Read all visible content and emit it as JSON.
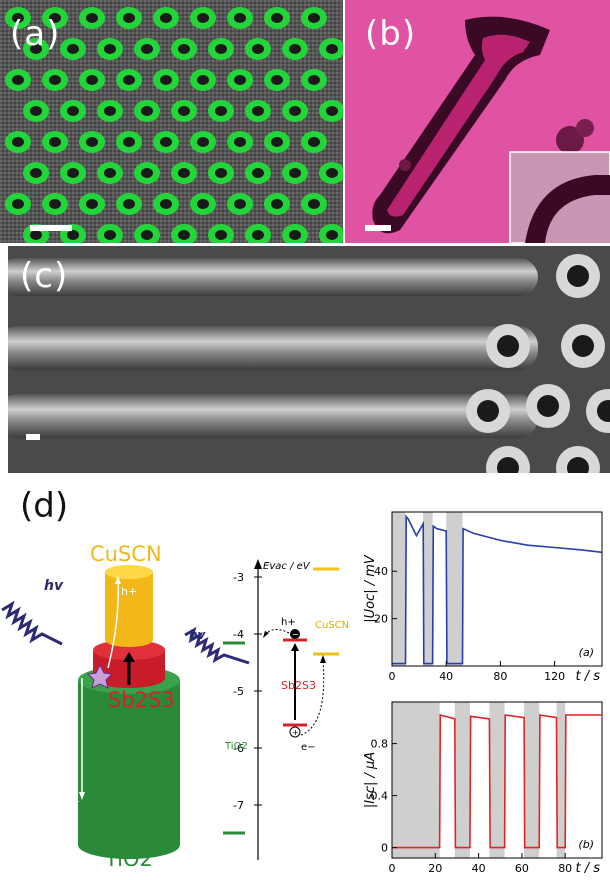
{
  "panels": {
    "a": {
      "label": "(a)"
    },
    "b": {
      "label": "(b)"
    },
    "c": {
      "label": "(c)"
    },
    "d": {
      "label": "(d)"
    }
  },
  "diagram": {
    "materials": {
      "top": "CuSCN",
      "middle": "Sb2S3",
      "bottom": "TiO2"
    },
    "light": "hv",
    "hole": "h+",
    "electron": "e−",
    "colors": {
      "cuscn": "#f7c520",
      "sb2s3": "#d9202a",
      "tio2": "#2a8a3a",
      "light": "#2b2a73"
    }
  },
  "energy": {
    "axis_label": "Evac / eV",
    "ticks": [
      "-3",
      "-4",
      "-5",
      "-6",
      "-7"
    ],
    "cuscn": "CuSCN",
    "sb2s3": "Sb2S3",
    "tio2": "TiO2",
    "light": "hv",
    "hole": "h+",
    "electron": "e−"
  },
  "chart_data": [
    {
      "type": "line",
      "ylabel": "|Uoc| / mV",
      "xlabel": "t / s",
      "tag": "(a)",
      "yticks": [
        20,
        40
      ],
      "xticks": [
        0,
        40,
        80,
        120
      ],
      "color": "#2b3da8",
      "shaded": [
        [
          0,
          10
        ],
        [
          23,
          30
        ],
        [
          40,
          52
        ]
      ],
      "x": [
        0,
        10,
        10.5,
        12,
        18,
        23,
        23.5,
        30,
        30.5,
        33,
        40,
        40.5,
        52,
        52.5,
        60,
        80,
        100,
        120,
        140,
        155
      ],
      "y": [
        1,
        1,
        63,
        62,
        55,
        60,
        1,
        1,
        59,
        58,
        57,
        1,
        1,
        58,
        56,
        53,
        51,
        50,
        49,
        48
      ]
    },
    {
      "type": "line",
      "ylabel": "|Isc| / µA",
      "xlabel": "t / s",
      "tag": "(b)",
      "yticks": [
        0,
        0.4,
        0.8
      ],
      "xticks": [
        0,
        20,
        40,
        60,
        80
      ],
      "color": "#e22424",
      "shaded": [
        [
          0,
          22
        ],
        [
          29,
          36
        ],
        [
          45,
          52
        ],
        [
          61,
          68
        ],
        [
          76,
          80
        ]
      ],
      "x": [
        0,
        22,
        22.3,
        29,
        29.3,
        36,
        36.3,
        45,
        45.3,
        52,
        52.3,
        61,
        61.3,
        68,
        68.3,
        76,
        76.3,
        80,
        80.3,
        97
      ],
      "y": [
        0,
        0,
        1.02,
        0.99,
        0,
        0,
        1.01,
        0.99,
        0,
        0,
        1.02,
        1.0,
        0,
        0,
        1.02,
        1.0,
        0,
        0,
        1.02,
        1.02
      ]
    }
  ]
}
